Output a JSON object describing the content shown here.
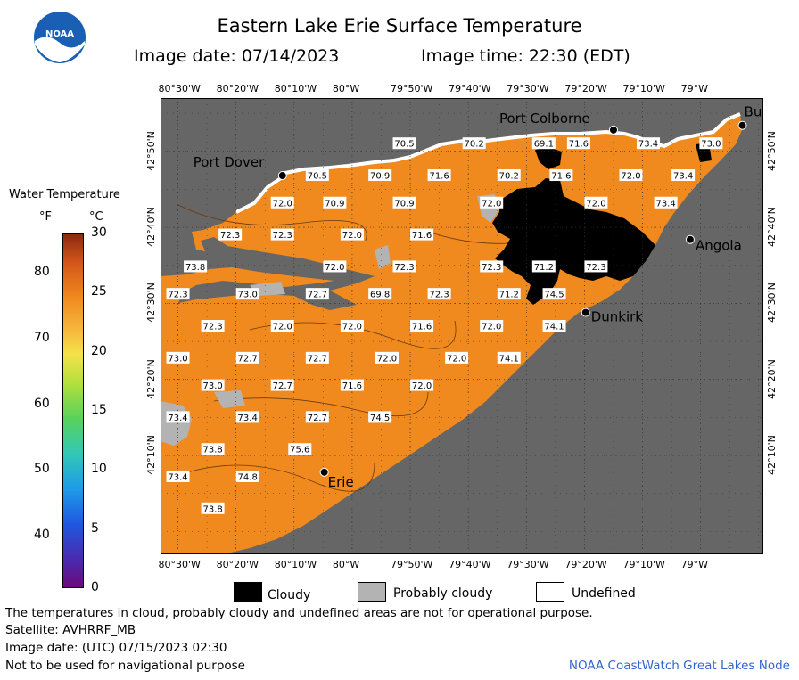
{
  "header": {
    "title": "Eastern Lake Erie Surface Temperature",
    "image_date": "Image date: 07/14/2023",
    "image_time": "Image time: 22:30 (EDT)",
    "logo_text": "NOAA"
  },
  "axes": {
    "lon_labels": [
      "80°30'W",
      "80°20'W",
      "80°10'W",
      "80°W",
      "79°50'W",
      "79°40'W",
      "79°30'W",
      "79°20'W",
      "79°10'W",
      "79°W"
    ],
    "lat_labels": [
      "42°50'N",
      "42°40'N",
      "42°30'N",
      "42°20'N",
      "42°10'N"
    ]
  },
  "places": [
    {
      "name": "Port Dover",
      "lon": -80.2,
      "lat": 42.78
    },
    {
      "name": "Port Colborne",
      "lon": -79.25,
      "lat": 42.88
    },
    {
      "name": "Buffalo",
      "lon": -78.88,
      "lat": 42.89
    },
    {
      "name": "Angola",
      "lon": -79.03,
      "lat": 42.64
    },
    {
      "name": "Dunkirk",
      "lon": -79.33,
      "lat": 42.48
    },
    {
      "name": "Erie",
      "lon": -80.08,
      "lat": 42.13
    }
  ],
  "place_labels": {
    "port_dover": "Port Dover",
    "port_colborne": "Port Colborne",
    "buffalo": "Buf",
    "angola": "Angola",
    "dunkirk": "Dunkirk",
    "erie": "Erie"
  },
  "temperature_labels": [
    {
      "v": "70.5",
      "lon": -79.85,
      "lat": 42.85
    },
    {
      "v": "70.2",
      "lon": -79.65,
      "lat": 42.85
    },
    {
      "v": "69.1",
      "lon": -79.45,
      "lat": 42.85
    },
    {
      "v": "71.6",
      "lon": -79.35,
      "lat": 42.85
    },
    {
      "v": "73.4",
      "lon": -79.15,
      "lat": 42.85
    },
    {
      "v": "73.0",
      "lon": -78.97,
      "lat": 42.85
    },
    {
      "v": "70.5",
      "lon": -80.1,
      "lat": 42.78
    },
    {
      "v": "70.9",
      "lon": -79.92,
      "lat": 42.78
    },
    {
      "v": "71.6",
      "lon": -79.75,
      "lat": 42.78
    },
    {
      "v": "70.2",
      "lon": -79.55,
      "lat": 42.78
    },
    {
      "v": "71.6",
      "lon": -79.4,
      "lat": 42.78
    },
    {
      "v": "72.0",
      "lon": -79.2,
      "lat": 42.78
    },
    {
      "v": "73.4",
      "lon": -79.05,
      "lat": 42.78
    },
    {
      "v": "72.0",
      "lon": -80.2,
      "lat": 42.72
    },
    {
      "v": "70.9",
      "lon": -80.05,
      "lat": 42.72
    },
    {
      "v": "70.9",
      "lon": -79.85,
      "lat": 42.72
    },
    {
      "v": "72.0",
      "lon": -79.6,
      "lat": 42.72
    },
    {
      "v": "72.0",
      "lon": -79.3,
      "lat": 42.72
    },
    {
      "v": "73.4",
      "lon": -79.1,
      "lat": 42.72
    },
    {
      "v": "72.3",
      "lon": -80.35,
      "lat": 42.65
    },
    {
      "v": "72.3",
      "lon": -80.2,
      "lat": 42.65
    },
    {
      "v": "72.0",
      "lon": -80.0,
      "lat": 42.65
    },
    {
      "v": "71.6",
      "lon": -79.8,
      "lat": 42.65
    },
    {
      "v": "73.8",
      "lon": -80.45,
      "lat": 42.58
    },
    {
      "v": "72.0",
      "lon": -80.05,
      "lat": 42.58
    },
    {
      "v": "72.3",
      "lon": -79.85,
      "lat": 42.58
    },
    {
      "v": "72.3",
      "lon": -79.6,
      "lat": 42.58
    },
    {
      "v": "71.2",
      "lon": -79.45,
      "lat": 42.58
    },
    {
      "v": "72.3",
      "lon": -79.3,
      "lat": 42.58
    },
    {
      "v": "72.3",
      "lon": -80.5,
      "lat": 42.52
    },
    {
      "v": "73.0",
      "lon": -80.3,
      "lat": 42.52
    },
    {
      "v": "72.7",
      "lon": -80.1,
      "lat": 42.52
    },
    {
      "v": "69.8",
      "lon": -79.92,
      "lat": 42.52
    },
    {
      "v": "72.3",
      "lon": -79.75,
      "lat": 42.52
    },
    {
      "v": "71.2",
      "lon": -79.55,
      "lat": 42.52
    },
    {
      "v": "74.5",
      "lon": -79.42,
      "lat": 42.52
    },
    {
      "v": "72.7",
      "lon": -80.6,
      "lat": 42.45
    },
    {
      "v": "72.3",
      "lon": -80.4,
      "lat": 42.45
    },
    {
      "v": "72.0",
      "lon": -80.2,
      "lat": 42.45
    },
    {
      "v": "72.0",
      "lon": -80.0,
      "lat": 42.45
    },
    {
      "v": "71.6",
      "lon": -79.8,
      "lat": 42.45
    },
    {
      "v": "72.0",
      "lon": -79.6,
      "lat": 42.45
    },
    {
      "v": "74.1",
      "lon": -79.42,
      "lat": 42.45
    },
    {
      "v": "73.0",
      "lon": -80.5,
      "lat": 42.38
    },
    {
      "v": "72.7",
      "lon": -80.3,
      "lat": 42.38
    },
    {
      "v": "72.7",
      "lon": -80.1,
      "lat": 42.38
    },
    {
      "v": "72.0",
      "lon": -79.9,
      "lat": 42.38
    },
    {
      "v": "72.0",
      "lon": -79.7,
      "lat": 42.38
    },
    {
      "v": "74.1",
      "lon": -79.55,
      "lat": 42.38
    },
    {
      "v": "73.0",
      "lon": -80.6,
      "lat": 42.32
    },
    {
      "v": "73.0",
      "lon": -80.4,
      "lat": 42.32
    },
    {
      "v": "72.7",
      "lon": -80.2,
      "lat": 42.32
    },
    {
      "v": "71.6",
      "lon": -80.0,
      "lat": 42.32
    },
    {
      "v": "72.0",
      "lon": -79.8,
      "lat": 42.32
    },
    {
      "v": "73.4",
      "lon": -80.5,
      "lat": 42.25
    },
    {
      "v": "73.4",
      "lon": -80.3,
      "lat": 42.25
    },
    {
      "v": "72.7",
      "lon": -80.1,
      "lat": 42.25
    },
    {
      "v": "74.5",
      "lon": -79.92,
      "lat": 42.25
    },
    {
      "v": "71.6",
      "lon": -80.6,
      "lat": 42.18
    },
    {
      "v": "73.8",
      "lon": -80.4,
      "lat": 42.18
    },
    {
      "v": "75.6",
      "lon": -80.15,
      "lat": 42.18
    },
    {
      "v": "73.4",
      "lon": -80.5,
      "lat": 42.12
    },
    {
      "v": "74.8",
      "lon": -80.3,
      "lat": 42.12
    },
    {
      "v": "73.0",
      "lon": -80.6,
      "lat": 42.05
    },
    {
      "v": "73.8",
      "lon": -80.4,
      "lat": 42.05
    }
  ],
  "legend": {
    "title": "Water Temperature",
    "unit_f": "°F",
    "unit_c": "°C",
    "f_ticks": [
      "80",
      "70",
      "60",
      "50",
      "40"
    ],
    "c_ticks": [
      "30",
      "25",
      "20",
      "15",
      "10",
      "5",
      "0"
    ],
    "range_c": [
      0,
      30
    ]
  },
  "key": {
    "cloudy": "Cloudy",
    "probably_cloudy": "Probably cloudy",
    "undefined": "Undefined"
  },
  "colors": {
    "water": "#f08a1e",
    "land": "#666666",
    "cloud": "#000000",
    "probably_cloudy": "#b3b3b3",
    "undefined": "#ffffff"
  },
  "footer": {
    "line1": "The temperatures in cloud, probably cloudy and undefined areas are not for operational purpose.",
    "line2": "Satellite: AVHRRF_MB",
    "line3": "Image date: (UTC) 07/15/2023  02:30",
    "line4": "Not to be used for navigational purpose",
    "credit": "NOAA CoastWatch Great Lakes Node"
  }
}
